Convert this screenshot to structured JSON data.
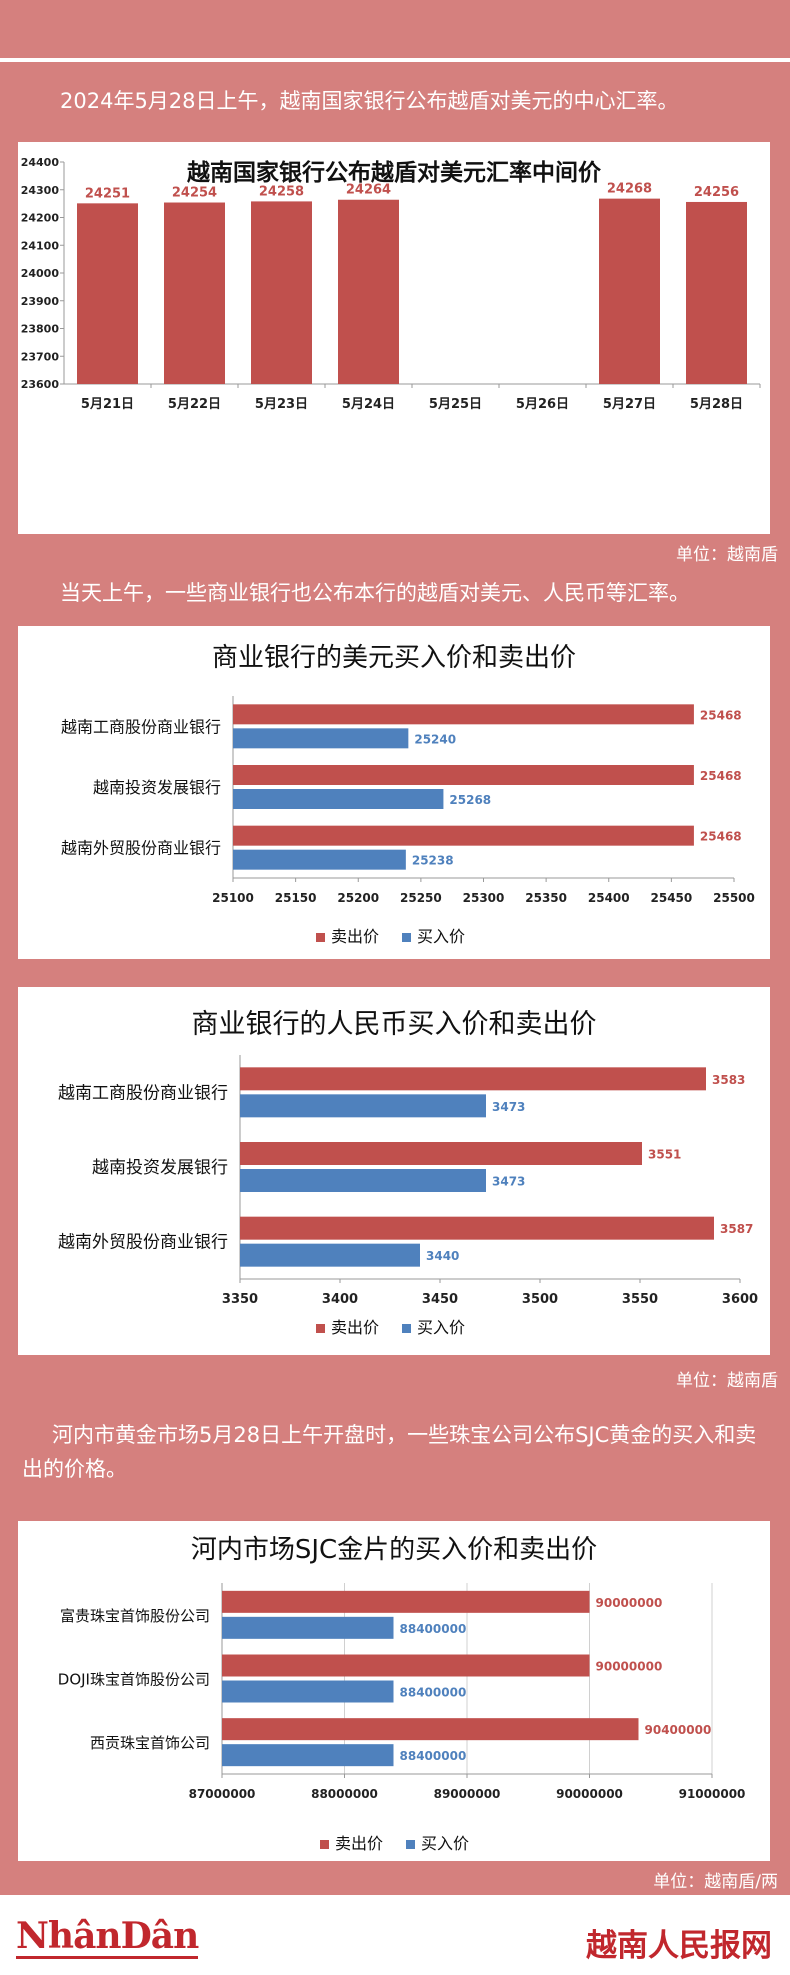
{
  "intro1": {
    "pre": "2024年5月28日上午，越南国家银行公布越盾对美元的中心汇率。"
  },
  "intro2": "当天上午，一些商业银行也公布本行的越盾对美元、人民币等汇率。",
  "intro3": "河内市黄金市场5月28日上午开盘时，一些珠宝公司公布SJC黄金的买入和卖出的价格。",
  "unit1": "单位：越南盾",
  "unit2": "单位：越南盾",
  "unit3": "单位：越南盾/两",
  "footer": {
    "logo_left": "NhânDân",
    "logo_right": "越南人民报网"
  },
  "colors": {
    "sell": "#c0504d",
    "buy": "#4f81bd",
    "page_bg": "#d5807e"
  },
  "chart_data": [
    {
      "type": "bar",
      "title": "越南国家银行公布越盾对美元汇率中间价",
      "categories": [
        "5月21日",
        "5月22日",
        "5月23日",
        "5月24日",
        "5月25日",
        "5月26日",
        "5月27日",
        "5月28日"
      ],
      "values": [
        24251,
        24254,
        24258,
        24264,
        null,
        null,
        24268,
        24256
      ],
      "ylim": [
        23600,
        24400
      ],
      "yticks": [
        23600,
        23700,
        23800,
        23900,
        24000,
        24100,
        24200,
        24300,
        24400
      ],
      "grid": false
    },
    {
      "type": "bar",
      "orientation": "horizontal",
      "title": "商业银行的美元买入价和卖出价",
      "categories": [
        "越南工商股份商业银行",
        "越南投资发展银行",
        "越南外贸股份商业银行"
      ],
      "series": [
        {
          "name": "卖出价",
          "values": [
            25468,
            25468,
            25468
          ]
        },
        {
          "name": "买入价",
          "values": [
            25240,
            25268,
            25238
          ]
        }
      ],
      "xlim": [
        25100,
        25500
      ],
      "xticks": [
        25100,
        25150,
        25200,
        25250,
        25300,
        25350,
        25400,
        25450,
        25500
      ],
      "legend": "bottom"
    },
    {
      "type": "bar",
      "orientation": "horizontal",
      "title": "商业银行的人民币买入价和卖出价",
      "categories": [
        "越南工商股份商业银行",
        "越南投资发展银行",
        "越南外贸股份商业银行"
      ],
      "series": [
        {
          "name": "卖出价",
          "values": [
            3583,
            3551,
            3587
          ]
        },
        {
          "name": "买入价",
          "values": [
            3473,
            3473,
            3440
          ]
        }
      ],
      "xlim": [
        3350,
        3600
      ],
      "xticks": [
        3350,
        3400,
        3450,
        3500,
        3550,
        3600
      ],
      "legend": "bottom"
    },
    {
      "type": "bar",
      "orientation": "horizontal",
      "title": "河内市场SJC金片的买入价和卖出价",
      "categories": [
        "富贵珠宝首饰股份公司",
        "DOJI珠宝首饰股份公司",
        "西贡珠宝首饰公司"
      ],
      "series": [
        {
          "name": "卖出价",
          "values": [
            90000000,
            90000000,
            90400000
          ]
        },
        {
          "name": "买入价",
          "values": [
            88400000,
            88400000,
            88400000
          ]
        }
      ],
      "xlim": [
        87000000,
        91000000
      ],
      "xticks": [
        87000000,
        88000000,
        89000000,
        90000000,
        91000000
      ],
      "grid": true,
      "legend": "bottom"
    }
  ]
}
